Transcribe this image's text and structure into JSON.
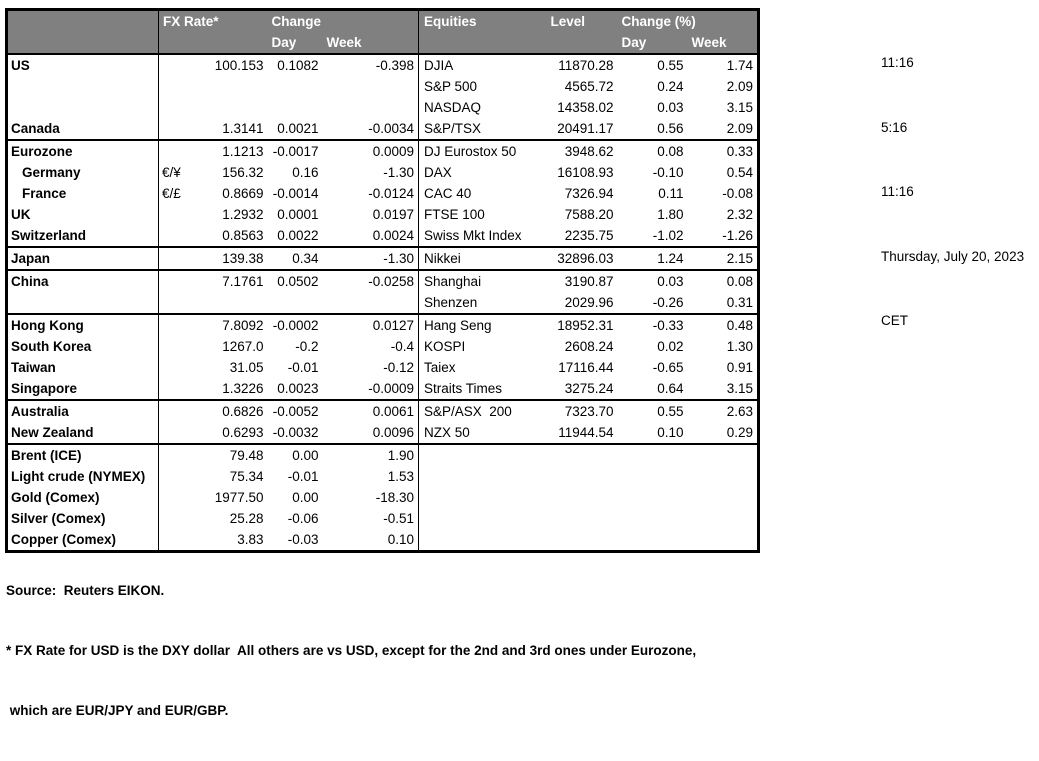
{
  "colors": {
    "header_bg": "#808080",
    "header_text": "#ffffff",
    "border": "#000000",
    "body_text": "#000000"
  },
  "table": {
    "header": {
      "fx_rate": "FX Rate*",
      "change": "Change",
      "day": "Day",
      "week": "Week",
      "equities": "Equities",
      "level": "Level",
      "change_pct": "Change (%)"
    },
    "rows": [
      {
        "name": "US",
        "pair": "",
        "fx": "100.153",
        "fx_day": "0.1082",
        "fx_week": "-0.398",
        "eq": "DJIA",
        "level": "11870.28",
        "eq_day": "0.55",
        "eq_week": "1.74",
        "indent": false,
        "group_top": false
      },
      {
        "name": "",
        "pair": "",
        "fx": "",
        "fx_day": "",
        "fx_week": "",
        "eq": "S&P 500",
        "level": "4565.72",
        "eq_day": "0.24",
        "eq_week": "2.09",
        "indent": false,
        "group_top": false
      },
      {
        "name": "",
        "pair": "",
        "fx": "",
        "fx_day": "",
        "fx_week": "",
        "eq": "NASDAQ",
        "level": "14358.02",
        "eq_day": "0.03",
        "eq_week": "3.15",
        "indent": false,
        "group_top": false
      },
      {
        "name": "Canada",
        "pair": "",
        "fx": "1.3141",
        "fx_day": "0.0021",
        "fx_week": "-0.0034",
        "eq": "S&P/TSX",
        "level": "20491.17",
        "eq_day": "0.56",
        "eq_week": "2.09",
        "indent": false,
        "group_top": false
      },
      {
        "name": "Eurozone",
        "pair": "",
        "fx": "1.1213",
        "fx_day": "-0.0017",
        "fx_week": "0.0009",
        "eq": "DJ Eurostox 50",
        "level": "3948.62",
        "eq_day": "0.08",
        "eq_week": "0.33",
        "indent": false,
        "group_top": true
      },
      {
        "name": "Germany",
        "pair": "€/¥",
        "fx": "156.32",
        "fx_day": "0.16",
        "fx_week": "-1.30",
        "eq": "DAX",
        "level": "16108.93",
        "eq_day": "-0.10",
        "eq_week": "0.54",
        "indent": true,
        "group_top": false
      },
      {
        "name": "France",
        "pair": "€/£",
        "fx": "0.8669",
        "fx_day": "-0.0014",
        "fx_week": "-0.0124",
        "eq": "CAC 40",
        "level": "7326.94",
        "eq_day": "0.11",
        "eq_week": "-0.08",
        "indent": true,
        "group_top": false
      },
      {
        "name": "UK",
        "pair": "",
        "fx": "1.2932",
        "fx_day": "0.0001",
        "fx_week": "0.0197",
        "eq": "FTSE 100",
        "level": "7588.20",
        "eq_day": "1.80",
        "eq_week": "2.32",
        "indent": false,
        "group_top": false
      },
      {
        "name": "Switzerland",
        "pair": "",
        "fx": "0.8563",
        "fx_day": "0.0022",
        "fx_week": "0.0024",
        "eq": "Swiss Mkt Index",
        "level": "2235.75",
        "eq_day": "-1.02",
        "eq_week": "-1.26",
        "indent": false,
        "group_top": false
      },
      {
        "name": "Japan",
        "pair": "",
        "fx": "139.38",
        "fx_day": "0.34",
        "fx_week": "-1.30",
        "eq": "Nikkei",
        "level": "32896.03",
        "eq_day": "1.24",
        "eq_week": "2.15",
        "indent": false,
        "group_top": true
      },
      {
        "name": "China",
        "pair": "",
        "fx": "7.1761",
        "fx_day": "0.0502",
        "fx_week": "-0.0258",
        "eq": "Shanghai",
        "level": "3190.87",
        "eq_day": "0.03",
        "eq_week": "0.08",
        "indent": false,
        "group_top": true
      },
      {
        "name": "",
        "pair": "",
        "fx": "",
        "fx_day": "",
        "fx_week": "",
        "eq": "Shenzen",
        "level": "2029.96",
        "eq_day": "-0.26",
        "eq_week": "0.31",
        "indent": false,
        "group_top": false
      },
      {
        "name": "Hong Kong",
        "pair": "",
        "fx": "7.8092",
        "fx_day": "-0.0002",
        "fx_week": "0.0127",
        "eq": "Hang Seng",
        "level": "18952.31",
        "eq_day": "-0.33",
        "eq_week": "0.48",
        "indent": false,
        "group_top": true
      },
      {
        "name": "South Korea",
        "pair": "",
        "fx": "1267.0",
        "fx_day": "-0.2",
        "fx_week": "-0.4",
        "eq": "KOSPI",
        "level": "2608.24",
        "eq_day": "0.02",
        "eq_week": "1.30",
        "indent": false,
        "group_top": false
      },
      {
        "name": "Taiwan",
        "pair": "",
        "fx": "31.05",
        "fx_day": "-0.01",
        "fx_week": "-0.12",
        "eq": "Taiex",
        "level": "17116.44",
        "eq_day": "-0.65",
        "eq_week": "0.91",
        "indent": false,
        "group_top": false
      },
      {
        "name": "Singapore",
        "pair": "",
        "fx": "1.3226",
        "fx_day": "0.0023",
        "fx_week": "-0.0009",
        "eq": "Straits Times",
        "level": "3275.24",
        "eq_day": "0.64",
        "eq_week": "3.15",
        "indent": false,
        "group_top": false
      },
      {
        "name": "Australia",
        "pair": "",
        "fx": "0.6826",
        "fx_day": "-0.0052",
        "fx_week": "0.0061",
        "eq": "S&P/ASX  200",
        "level": "7323.70",
        "eq_day": "0.55",
        "eq_week": "2.63",
        "indent": false,
        "group_top": true
      },
      {
        "name": "New Zealand",
        "pair": "",
        "fx": "0.6293",
        "fx_day": "-0.0032",
        "fx_week": "0.0096",
        "eq": "NZX 50",
        "level": "11944.54",
        "eq_day": "0.10",
        "eq_week": "0.29",
        "indent": false,
        "group_top": false
      },
      {
        "name": "Brent (ICE)",
        "pair": "",
        "fx": "79.48",
        "fx_day": "0.00",
        "fx_week": "1.90",
        "eq": "",
        "level": "",
        "eq_day": "",
        "eq_week": "",
        "indent": false,
        "group_top": true
      },
      {
        "name": "Light crude (NYMEX)",
        "pair": "",
        "fx": "75.34",
        "fx_day": "-0.01",
        "fx_week": "1.53",
        "eq": "",
        "level": "",
        "eq_day": "",
        "eq_week": "",
        "indent": false,
        "group_top": false
      },
      {
        "name": "Gold (Comex)",
        "pair": "",
        "fx": "1977.50",
        "fx_day": "0.00",
        "fx_week": "-18.30",
        "eq": "",
        "level": "",
        "eq_day": "",
        "eq_week": "",
        "indent": false,
        "group_top": false
      },
      {
        "name": "Silver (Comex)",
        "pair": "",
        "fx": "25.28",
        "fx_day": "-0.06",
        "fx_week": "-0.51",
        "eq": "",
        "level": "",
        "eq_day": "",
        "eq_week": "",
        "indent": false,
        "group_top": false
      },
      {
        "name": "Copper (Comex)",
        "pair": "",
        "fx": "3.83",
        "fx_day": "-0.03",
        "fx_week": "0.10",
        "eq": "",
        "level": "",
        "eq_day": "",
        "eq_week": "",
        "indent": false,
        "group_top": false
      }
    ]
  },
  "info_panel": {
    "lines": [
      "11:16",
      "5:16",
      "11:16",
      "Thursday, July 20, 2023",
      "CET"
    ]
  },
  "footer": {
    "source": "Source:  Reuters EIKON.",
    "note1": "* FX Rate for USD is the DXY dollar  All others are vs USD, except for the 2nd and 3rd ones under Eurozone,",
    "note2": " which are EUR/JPY and EUR/GBP."
  }
}
